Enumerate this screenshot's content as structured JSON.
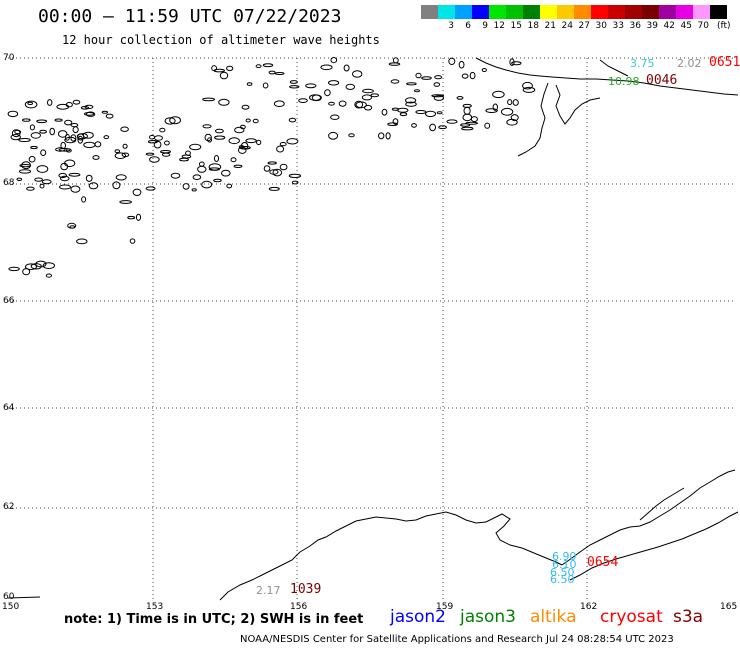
{
  "header": {
    "title": "00:00 – 11:59 UTC 07/22/2023",
    "subtitle": "12 hour collection of altimeter wave heights"
  },
  "legend": {
    "swatches": [
      "#808080",
      "#00e6e6",
      "#00a0ff",
      "#0000ff",
      "#00e600",
      "#00c000",
      "#008000",
      "#ffff00",
      "#ffc800",
      "#ff8c00",
      "#ff0000",
      "#c80000",
      "#a00000",
      "#780000",
      "#a000a0",
      "#e600e6",
      "#ff96ff",
      "#000000"
    ],
    "labels": [
      "3",
      "6",
      "9",
      "12",
      "15",
      "18",
      "21",
      "24",
      "27",
      "30",
      "33",
      "36",
      "39",
      "42",
      "45",
      "70"
    ],
    "unit": "(ft)"
  },
  "axes": {
    "lat_labels": [
      "70",
      "68",
      "66",
      "64",
      "62",
      "60"
    ],
    "lon_labels": [
      "150",
      "153",
      "156",
      "159",
      "162",
      "165"
    ]
  },
  "observations": [
    {
      "text": "3.75",
      "color": "#33cccc"
    },
    {
      "text": "2.02",
      "color": "#909090"
    },
    {
      "text": "0651",
      "color": "#ff0000",
      "kind": "time"
    },
    {
      "text": "10.98",
      "color": "#22aa22"
    },
    {
      "text": "0046",
      "color": "#800000",
      "kind": "time"
    },
    {
      "text": "6.90",
      "color": "#33bbee"
    },
    {
      "text": "6.10",
      "color": "#33bbee"
    },
    {
      "text": "6.50",
      "color": "#33bbee"
    },
    {
      "text": "6.50",
      "color": "#33bbee"
    },
    {
      "text": "0654",
      "color": "#ff0000",
      "kind": "time"
    },
    {
      "text": "2.17",
      "color": "#909090"
    },
    {
      "text": "1039",
      "color": "#800000",
      "kind": "time"
    }
  ],
  "footer": {
    "note": "note: 1) Time is in UTC; 2) SWH is in feet",
    "satellites": [
      {
        "name": "jason2",
        "color": "#0000ff"
      },
      {
        "name": "jason3",
        "color": "#008000"
      },
      {
        "name": "altika",
        "color": "#ff8c00"
      },
      {
        "name": "cryosat",
        "color": "#ff0000"
      },
      {
        "name": "s3a",
        "color": "#800000"
      }
    ],
    "credit": "NOAA/NESDIS Center for Satellite Applications and Research   Jul 24 08:28:54 UTC 2023"
  }
}
